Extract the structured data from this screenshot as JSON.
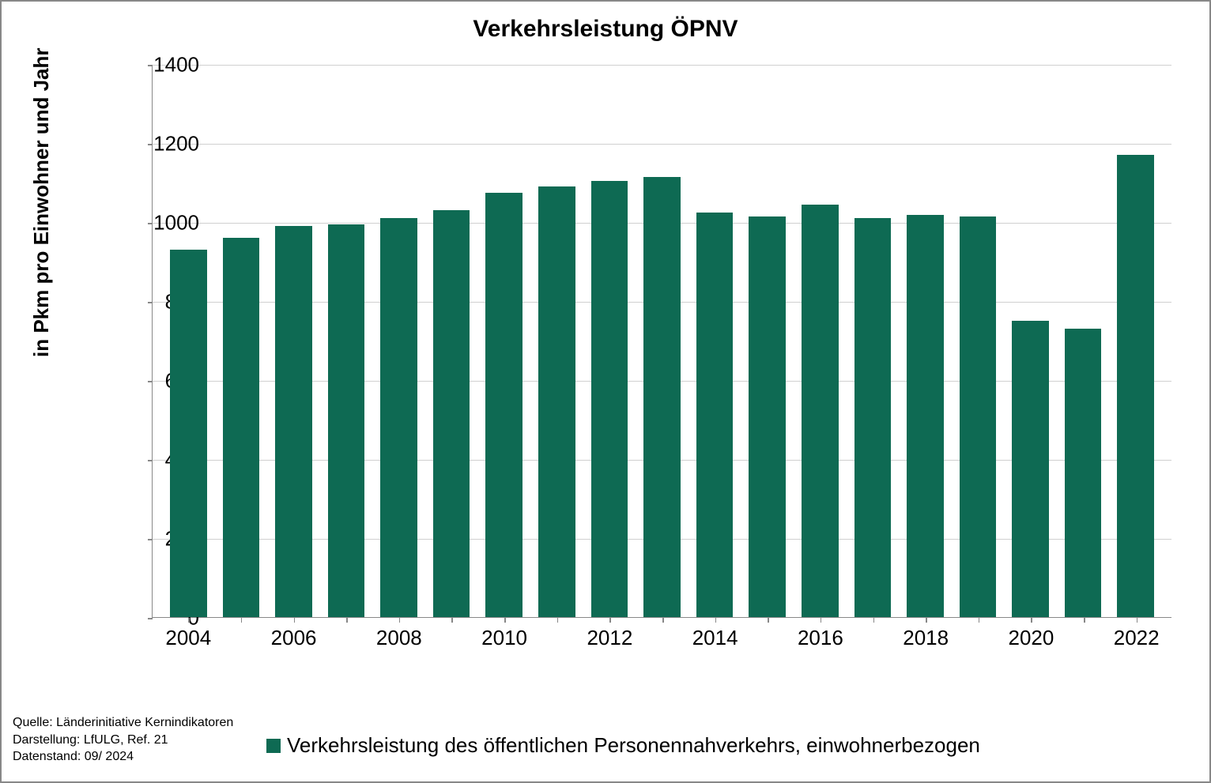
{
  "chart": {
    "type": "bar",
    "title": "Verkehrsleistung ÖPNV",
    "title_fontsize": 30,
    "ylabel": "in Pkm pro Einwohner und Jahr",
    "label_fontsize": 26,
    "background_color": "#ffffff",
    "border_color": "#888888",
    "grid_color": "#d0d0d0",
    "axis_color": "#888888",
    "text_color": "#000000",
    "ylim": [
      0,
      1400
    ],
    "ytick_step": 200,
    "yticks": [
      0,
      200,
      400,
      600,
      800,
      1000,
      1200,
      1400
    ],
    "categories": [
      "2004",
      "2005",
      "2006",
      "2007",
      "2008",
      "2009",
      "2010",
      "2011",
      "2012",
      "2013",
      "2014",
      "2015",
      "2016",
      "2017",
      "2018",
      "2019",
      "2020",
      "2021",
      "2022"
    ],
    "x_tick_labels_shown": [
      "2004",
      "2006",
      "2008",
      "2010",
      "2012",
      "2014",
      "2016",
      "2018",
      "2020",
      "2022"
    ],
    "values": [
      930,
      960,
      990,
      995,
      1010,
      1030,
      1075,
      1090,
      1105,
      1115,
      1025,
      1015,
      1045,
      1010,
      1018,
      1015,
      750,
      730,
      1170
    ],
    "bar_color": "#0e6a53",
    "bar_width": 0.7,
    "tick_fontsize": 26,
    "legend": {
      "marker_color": "#0e6a53",
      "text": "Verkehrsleistung des öffentlichen Personennahverkehrs, einwohnerbezogen",
      "fontsize": 26
    },
    "source": {
      "line1": "Quelle:  Länderinitiative  Kernindikatoren",
      "line2": "Darstellung:  LfULG, Ref. 21",
      "line3": "Datenstand:  09/ 2024",
      "fontsize": 16
    }
  }
}
